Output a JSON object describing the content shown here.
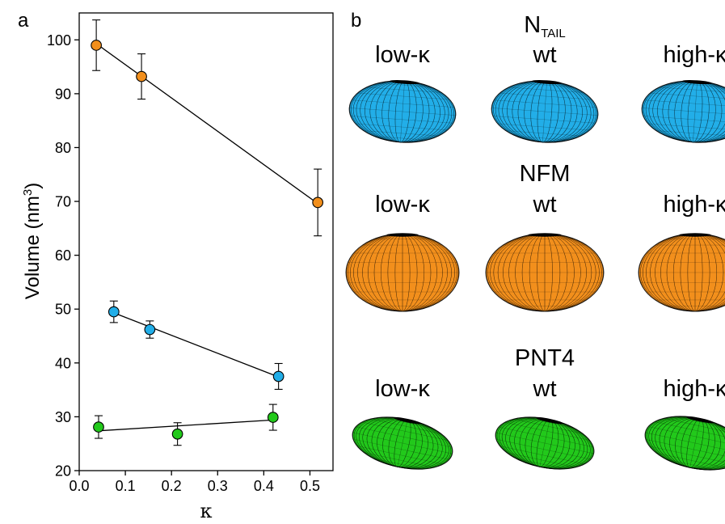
{
  "panel_a_label": "a",
  "panel_b_label": "b",
  "chart_data": {
    "type": "scatter",
    "title": "",
    "xlabel": "κ",
    "ylabel": "Volume (nm",
    "ylabel_sup": "3",
    "ylabel_close": ")",
    "xlim": [
      0.0,
      0.55
    ],
    "ylim": [
      20,
      105
    ],
    "xticks": [
      "0.0",
      "0.1",
      "0.2",
      "0.3",
      "0.4",
      "0.5"
    ],
    "yticks": [
      "20",
      "30",
      "40",
      "50",
      "60",
      "70",
      "80",
      "90",
      "100"
    ],
    "grid": false,
    "series": [
      {
        "color": "#f28f1c",
        "x": [
          0.037,
          0.135,
          0.517
        ],
        "y": [
          99.0,
          93.2,
          69.8
        ],
        "err": [
          4.7,
          4.2,
          6.2
        ],
        "fit": [
          [
            0.037,
            99.3
          ],
          [
            0.517,
            69.6
          ]
        ]
      },
      {
        "color": "#22aee8",
        "x": [
          0.075,
          0.153,
          0.432
        ],
        "y": [
          49.5,
          46.2,
          37.5
        ],
        "err": [
          2.0,
          1.6,
          2.4
        ],
        "fit": [
          [
            0.075,
            49.3
          ],
          [
            0.432,
            37.4
          ]
        ]
      },
      {
        "color": "#22c91b",
        "x": [
          0.042,
          0.213,
          0.42
        ],
        "y": [
          28.1,
          26.8,
          29.9
        ],
        "err": [
          2.1,
          2.1,
          2.4
        ],
        "fit": [
          [
            0.042,
            27.4
          ],
          [
            0.42,
            29.4
          ]
        ]
      }
    ]
  },
  "panel_b": {
    "rows": [
      {
        "title_main": "N",
        "title_sub": "TAIL",
        "color": "#22aee8",
        "labels": [
          "low-κ",
          "wt",
          "high-κ"
        ]
      },
      {
        "title_main": "NFM",
        "title_sub": "",
        "color": "#f28f1c",
        "labels": [
          "low-κ",
          "wt",
          "high-κ"
        ]
      },
      {
        "title_main": "PNT4",
        "title_sub": "",
        "color": "#22c91b",
        "labels": [
          "low-κ",
          "wt",
          "high-κ"
        ]
      }
    ]
  }
}
